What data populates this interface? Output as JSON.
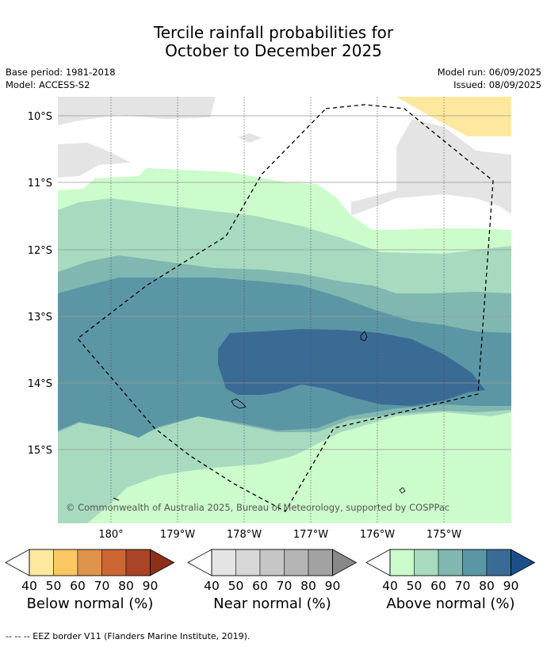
{
  "title_line1": "Tercile rainfall probabilities for",
  "title_line2": "October to December 2025",
  "meta": {
    "base_period": "Base period: 1981-2018",
    "model": "Model: ACCESS-S2",
    "model_run": "Model run: 06/09/2025",
    "issued": "Issued: 08/09/2025"
  },
  "map": {
    "lat_labels": [
      "10°S",
      "11°S",
      "12°S",
      "13°S",
      "14°S",
      "15°S"
    ],
    "lon_labels": [
      "180°",
      "179°W",
      "178°W",
      "177°W",
      "176°W",
      "175°W"
    ],
    "credit": "© Commonwealth of Australia 2025, Bureau of Meteorology, supported by COSPPac"
  },
  "legend": {
    "ticks": [
      "40",
      "50",
      "60",
      "70",
      "80",
      "90"
    ],
    "below": {
      "title": "Below normal (%)",
      "colors": [
        "#fee8a0",
        "#fdc763",
        "#e0934a",
        "#cc6633",
        "#aa4426",
        "#8e3018"
      ]
    },
    "near": {
      "title": "Near normal (%)",
      "colors": [
        "#e4e4e4",
        "#d7d7d7",
        "#c6c6c6",
        "#b4b4b4",
        "#a2a2a2",
        "#888888"
      ]
    },
    "above": {
      "title": "Above normal (%)",
      "colors": [
        "#ccfccc",
        "#a7dabf",
        "#80b7b0",
        "#5b96a5",
        "#3a6b95",
        "#1c4f8a"
      ]
    }
  },
  "footnote": "--  --  -- EEZ border V11 (Flanders Marine Institute, 2019)."
}
